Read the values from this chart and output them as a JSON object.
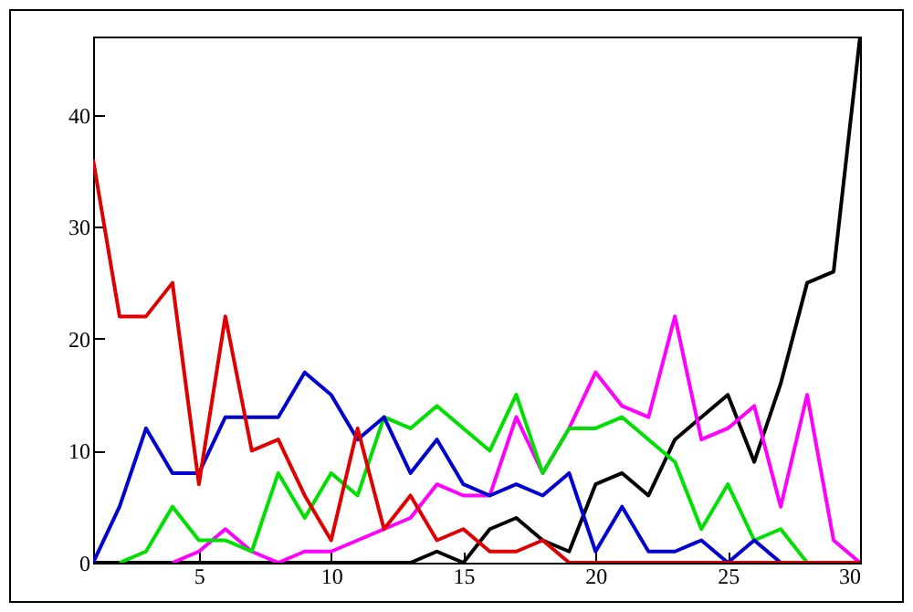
{
  "chart_data": {
    "type": "line",
    "x": [
      1,
      2,
      3,
      4,
      5,
      6,
      7,
      8,
      9,
      10,
      11,
      12,
      13,
      14,
      15,
      16,
      17,
      18,
      19,
      20,
      21,
      22,
      23,
      24,
      25,
      26,
      27,
      28,
      29,
      30
    ],
    "xlim": [
      1,
      30
    ],
    "xticks": [
      5,
      10,
      15,
      20,
      25,
      30
    ],
    "ylim": [
      0,
      47
    ],
    "yticks": [
      0,
      10,
      20,
      30,
      40
    ],
    "grid": false,
    "series": [
      {
        "color": "#000000",
        "values": [
          0,
          0,
          0,
          0,
          0,
          0,
          0,
          0,
          0,
          0,
          0,
          0,
          0,
          1,
          0,
          3,
          4,
          2,
          1,
          7,
          8,
          6,
          11,
          13,
          15,
          9,
          16,
          25,
          26,
          47
        ]
      },
      {
        "color": "#ff00ff",
        "values": [
          null,
          null,
          null,
          0,
          1,
          3,
          1,
          0,
          1,
          1,
          2,
          3,
          4,
          7,
          6,
          6,
          13,
          8,
          12,
          17,
          14,
          13,
          22,
          11,
          12,
          14,
          5,
          15,
          2,
          0
        ]
      },
      {
        "color": "#00e000",
        "values": [
          null,
          0,
          1,
          5,
          2,
          2,
          1,
          8,
          4,
          8,
          6,
          13,
          12,
          14,
          12,
          10,
          15,
          8,
          12,
          12,
          13,
          11,
          9,
          3,
          7,
          2,
          3,
          0,
          0,
          0
        ]
      },
      {
        "color": "#0000d0",
        "values": [
          0,
          5,
          12,
          8,
          8,
          13,
          13,
          13,
          17,
          15,
          11,
          13,
          8,
          11,
          7,
          6,
          7,
          6,
          8,
          1,
          5,
          1,
          1,
          2,
          0,
          2,
          0,
          null,
          null,
          null
        ]
      },
      {
        "color": "#e00000",
        "values": [
          36,
          22,
          22,
          25,
          7,
          22,
          10,
          11,
          6,
          2,
          12,
          3,
          6,
          2,
          3,
          1,
          1,
          2,
          0,
          0,
          0,
          0,
          0,
          0,
          0,
          0,
          0,
          0,
          0,
          0
        ]
      }
    ]
  }
}
